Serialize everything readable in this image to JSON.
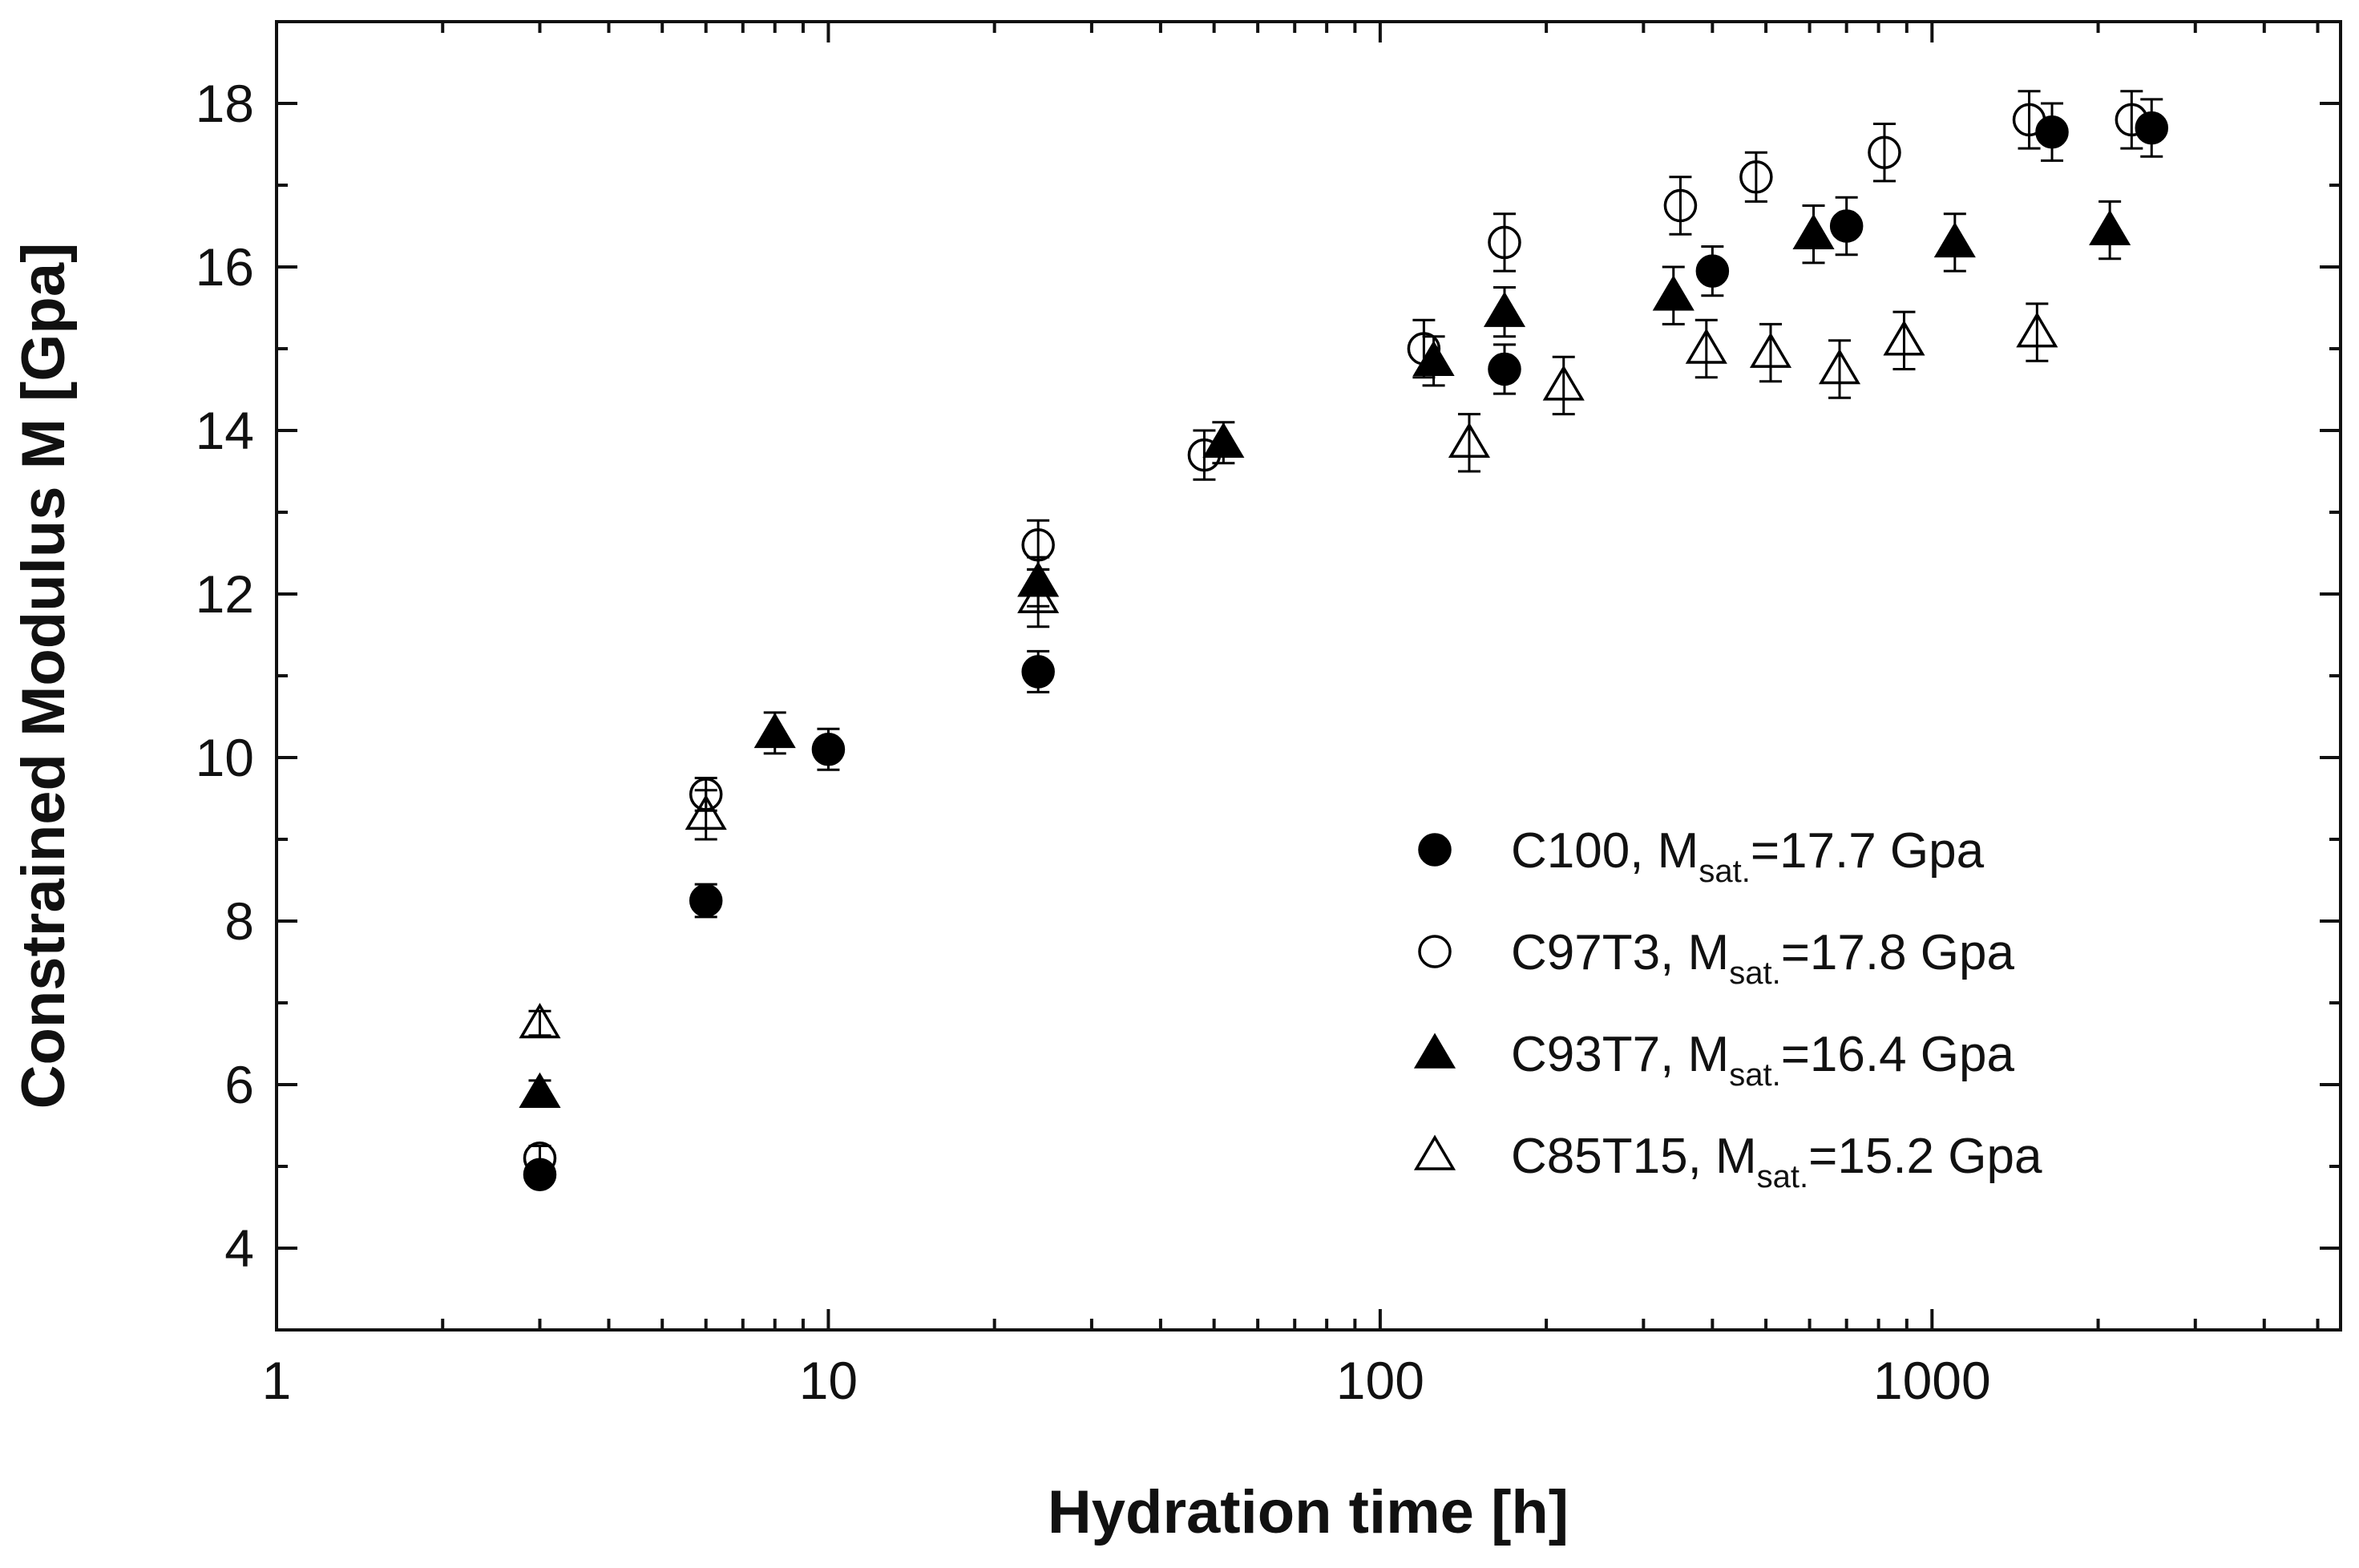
{
  "chart_data": {
    "type": "scatter",
    "title": "",
    "xlabel": "Hydration time [h]",
    "ylabel": "Constrained Modulus M [Gpa]",
    "xscale": "log",
    "xlim": [
      1,
      5500
    ],
    "ylim": [
      3,
      19
    ],
    "xticks": [
      1,
      10,
      100,
      1000
    ],
    "xtick_labels": [
      "1",
      "10",
      "100",
      "1000"
    ],
    "yticks": [
      4,
      6,
      8,
      10,
      12,
      14,
      16,
      18
    ],
    "ytick_labels": [
      "4",
      "6",
      "8",
      "10",
      "12",
      "14",
      "16",
      "18"
    ],
    "legend_position": "center-right",
    "series": [
      {
        "name": "C100",
        "legend_main": "C100, M",
        "legend_sub": "sat.",
        "legend_value": "=17.7 Gpa",
        "marker": "circle",
        "filled": true,
        "x": [
          3,
          6,
          10,
          24,
          168,
          400,
          700,
          1650,
          2500
        ],
        "y": [
          4.9,
          8.25,
          10.1,
          11.05,
          14.75,
          15.95,
          16.5,
          17.65,
          17.7
        ],
        "err": [
          0.1,
          0.2,
          0.25,
          0.25,
          0.3,
          0.3,
          0.35,
          0.35,
          0.35
        ]
      },
      {
        "name": "C97T3",
        "legend_main": "C97T3, M",
        "legend_sub": "sat.",
        "legend_value": "=17.8 Gpa",
        "marker": "circle",
        "filled": false,
        "x": [
          3,
          6,
          24,
          48,
          120,
          168,
          350,
          480,
          820,
          1500,
          2300
        ],
        "y": [
          5.1,
          9.55,
          12.6,
          13.7,
          15.0,
          16.3,
          16.75,
          17.1,
          17.4,
          17.8,
          17.8
        ],
        "err": [
          0.15,
          0.2,
          0.3,
          0.3,
          0.35,
          0.35,
          0.35,
          0.3,
          0.35,
          0.35,
          0.35
        ]
      },
      {
        "name": "C93T7",
        "legend_main": "C93T7, M",
        "legend_sub": "sat.",
        "legend_value": "=16.4 Gpa",
        "marker": "triangle",
        "filled": true,
        "x": [
          3,
          8,
          24,
          52,
          125,
          168,
          340,
          610,
          1100,
          2100
        ],
        "y": [
          5.9,
          10.3,
          12.15,
          13.85,
          14.85,
          15.45,
          15.65,
          16.4,
          16.3,
          16.45
        ],
        "err": [
          0.15,
          0.25,
          0.3,
          0.25,
          0.3,
          0.3,
          0.35,
          0.35,
          0.35,
          0.35
        ]
      },
      {
        "name": "C85T15",
        "legend_main": "C85T15, M",
        "legend_sub": "sat.",
        "legend_value": "=15.2 Gpa",
        "marker": "triangle",
        "filled": false,
        "x": [
          3,
          6,
          24,
          145,
          215,
          390,
          510,
          680,
          890,
          1550
        ],
        "y": [
          6.75,
          9.3,
          11.95,
          13.85,
          14.55,
          15.0,
          14.95,
          14.75,
          15.1,
          15.2
        ],
        "err": [
          0.15,
          0.3,
          0.35,
          0.35,
          0.35,
          0.35,
          0.35,
          0.35,
          0.35,
          0.35
        ]
      }
    ]
  }
}
